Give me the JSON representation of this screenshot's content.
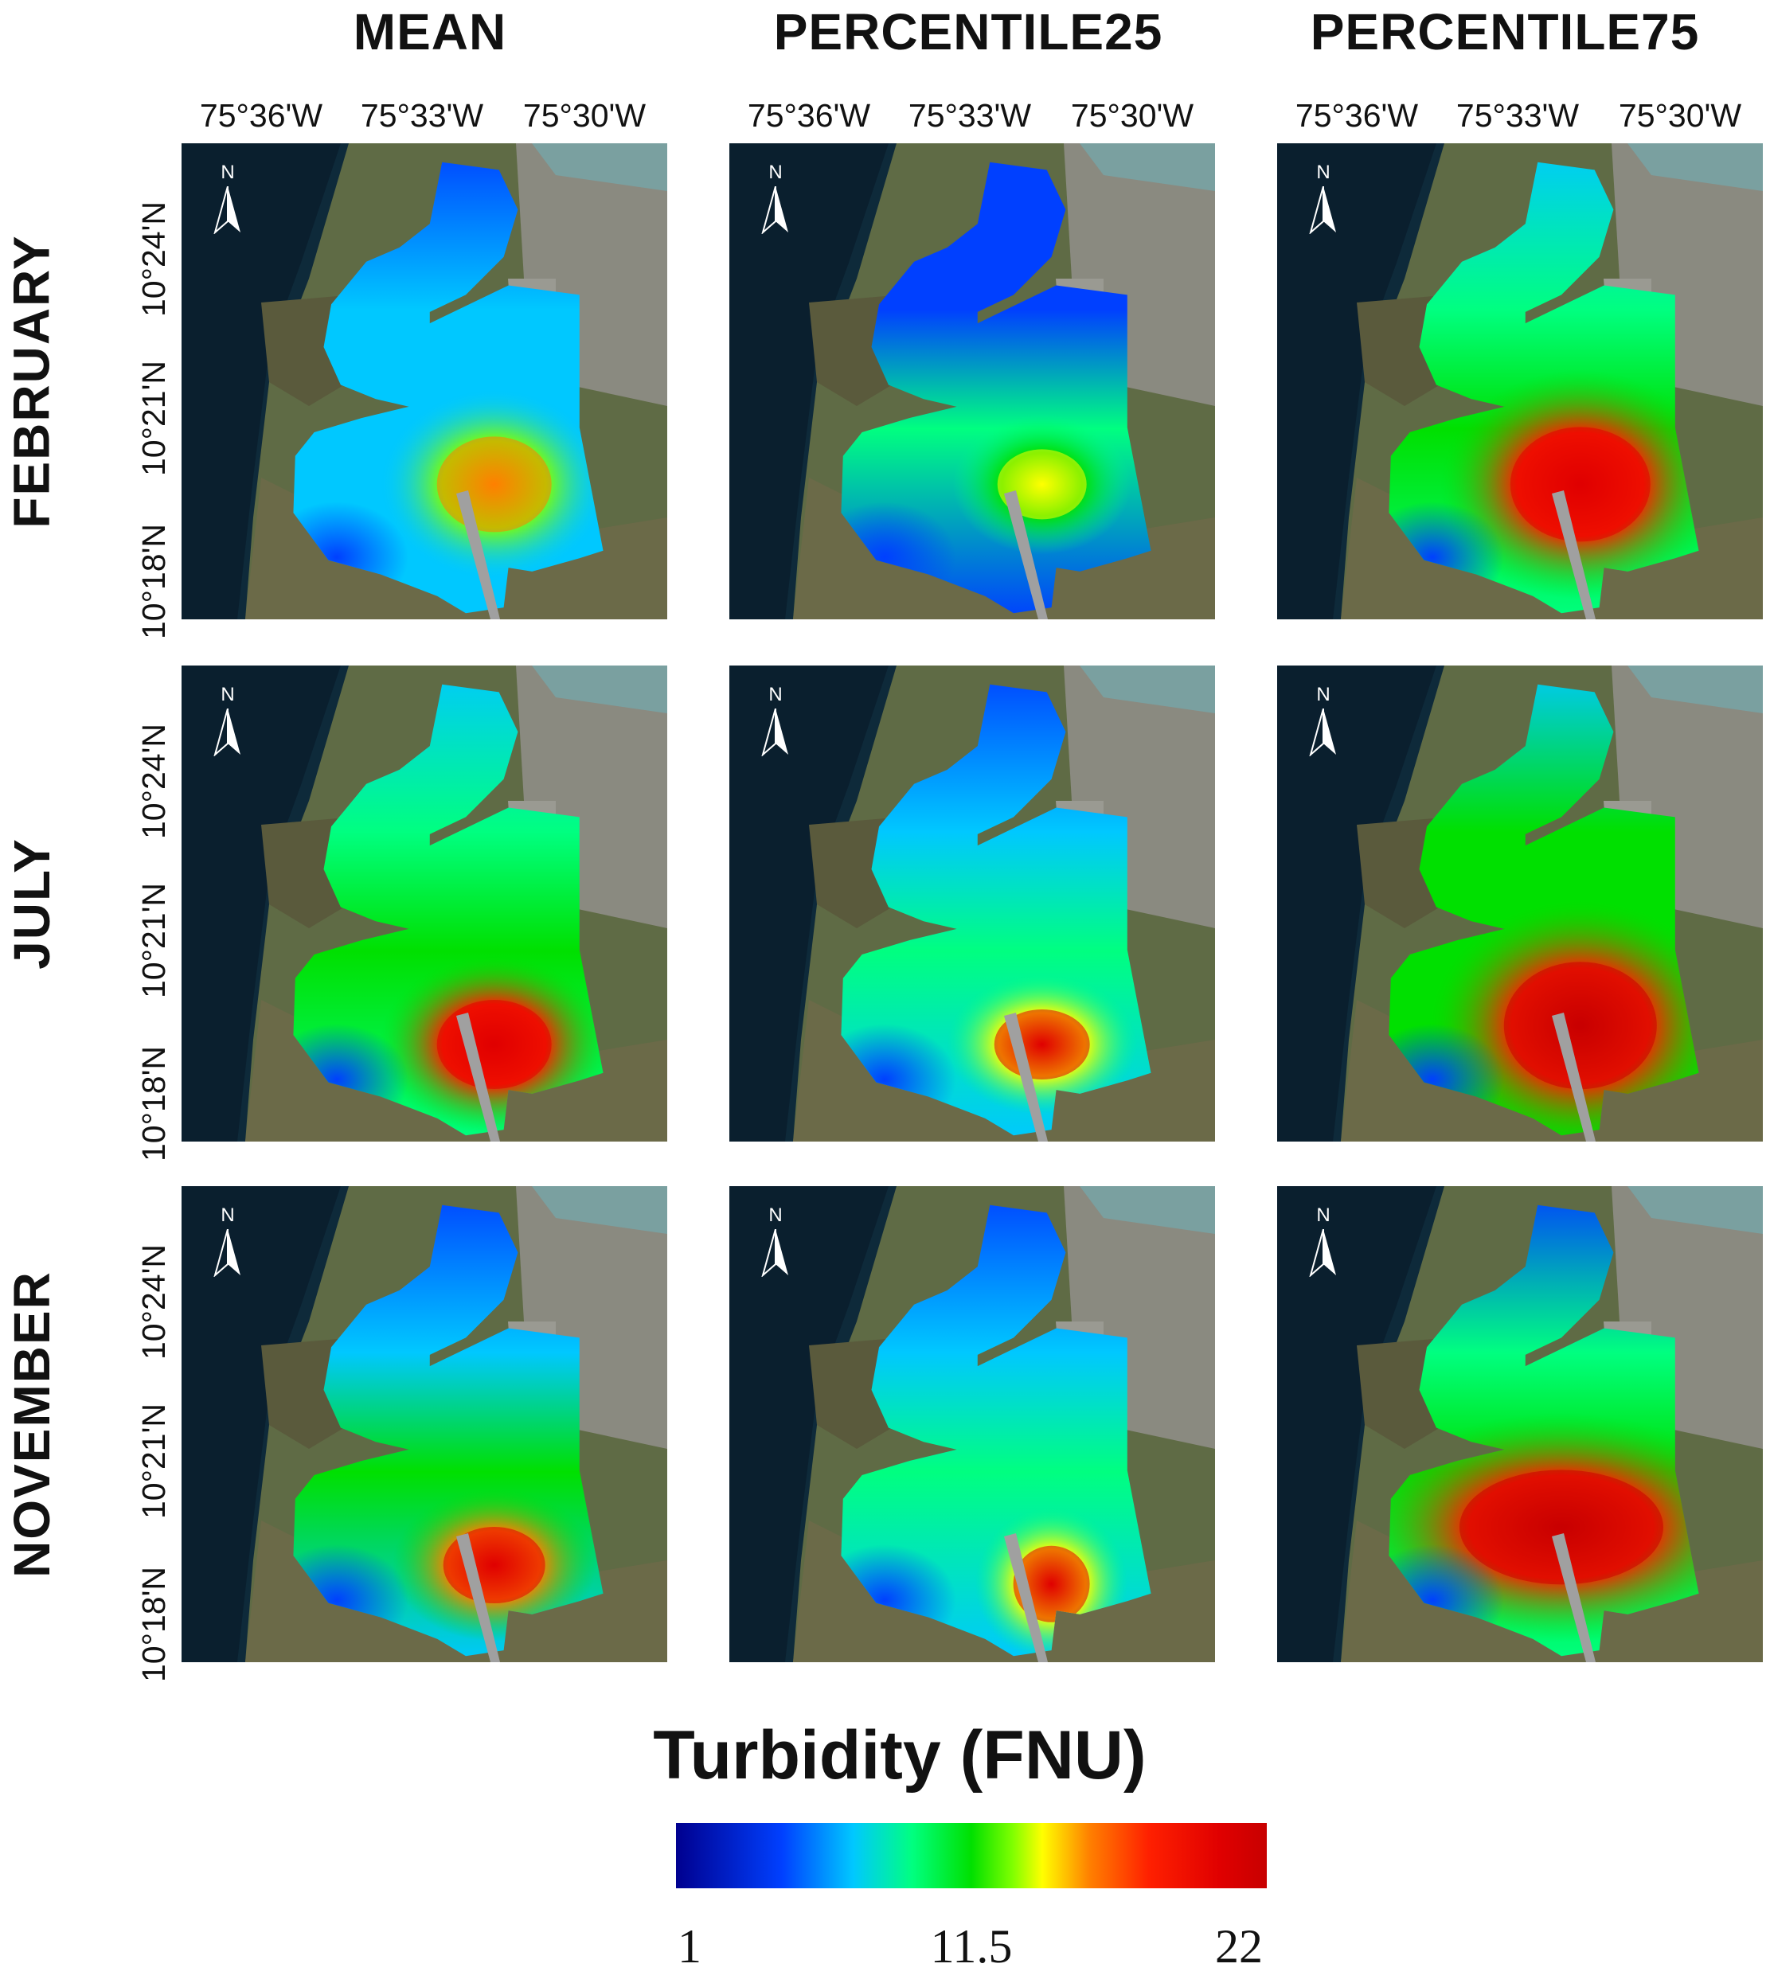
{
  "columns": [
    "MEAN",
    "PERCENTILE25",
    "PERCENTILE75"
  ],
  "rows": [
    "FEBRUARY",
    "JULY",
    "NOVEMBER"
  ],
  "longitude_labels": [
    "75°36'W",
    "75°33'W",
    "75°30'W"
  ],
  "latitude_labels": [
    "10°24'N",
    "10°21'N",
    "10°18'N"
  ],
  "north_arrow_label": "N",
  "legend": {
    "title": "Turbidity (FNU)",
    "min_label": "1",
    "mid_label": "11.5",
    "max_label": "22",
    "colors": [
      "#00008f",
      "#0040ff",
      "#00c8ff",
      "#00ff80",
      "#00e000",
      "#80ff00",
      "#ffff00",
      "#ff8000",
      "#ff2000",
      "#e00000",
      "#c80000"
    ]
  },
  "map_layers": {
    "basemap": "satellite imagery",
    "overlay": "turbidity interpolation"
  }
}
